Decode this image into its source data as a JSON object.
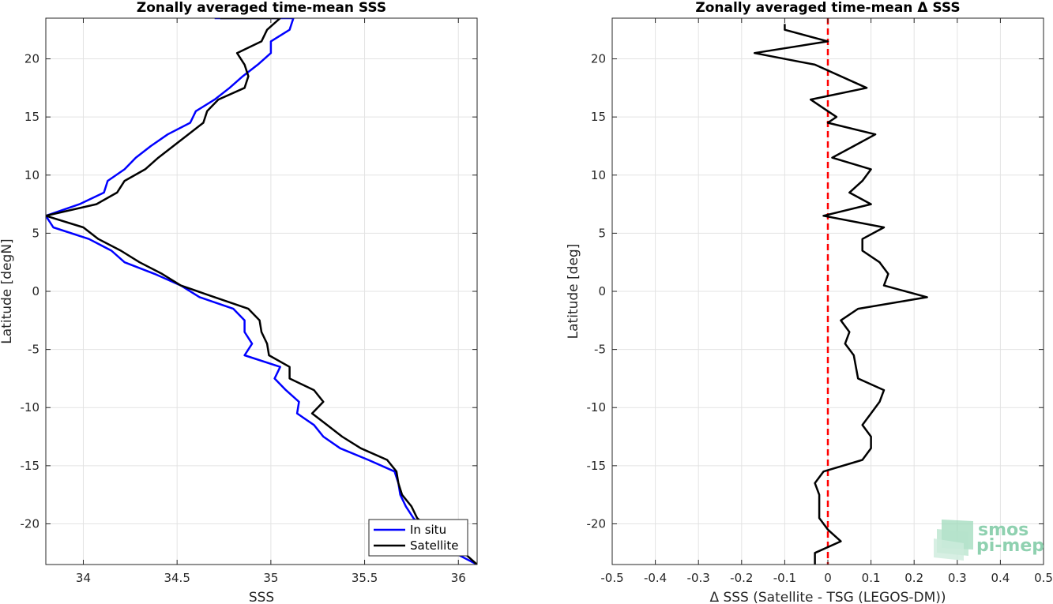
{
  "chart_data": [
    {
      "type": "line",
      "title": "Zonally averaged time-mean SSS",
      "xlabel": "SSS",
      "ylabel": "Latitude [degN]",
      "xlim": [
        33.8,
        36.1
      ],
      "ylim": [
        -23.5,
        23.5
      ],
      "xticks": [
        "34",
        "34.5",
        "35",
        "35.5",
        "36"
      ],
      "xtick_values": [
        34,
        34.5,
        35,
        35.5,
        36
      ],
      "yticks": [
        "-20",
        "-15",
        "-10",
        "-5",
        "0",
        "5",
        "10",
        "15",
        "20"
      ],
      "ytick_values": [
        -20,
        -15,
        -10,
        -5,
        0,
        5,
        10,
        15,
        20
      ],
      "grid": true,
      "legend_position": "bottom-right",
      "series": [
        {
          "name": "In situ",
          "color": "#0000ff",
          "points": [
            [
              34.7,
              23.5
            ],
            [
              35.12,
              23.5
            ],
            [
              35.1,
              22.5
            ],
            [
              35.0,
              21.5
            ],
            [
              35.0,
              20.5
            ],
            [
              34.93,
              19.5
            ],
            [
              34.85,
              18.5
            ],
            [
              34.78,
              17.5
            ],
            [
              34.7,
              16.5
            ],
            [
              34.6,
              15.5
            ],
            [
              34.57,
              14.5
            ],
            [
              34.45,
              13.5
            ],
            [
              34.36,
              12.5
            ],
            [
              34.28,
              11.5
            ],
            [
              34.22,
              10.5
            ],
            [
              34.13,
              9.5
            ],
            [
              34.11,
              8.5
            ],
            [
              33.98,
              7.5
            ],
            [
              33.8,
              6.5
            ],
            [
              33.84,
              5.5
            ],
            [
              34.03,
              4.5
            ],
            [
              34.15,
              3.5
            ],
            [
              34.22,
              2.5
            ],
            [
              34.38,
              1.5
            ],
            [
              34.52,
              0.5
            ],
            [
              34.62,
              -0.5
            ],
            [
              34.8,
              -1.5
            ],
            [
              34.86,
              -2.5
            ],
            [
              34.86,
              -3.5
            ],
            [
              34.9,
              -4.5
            ],
            [
              34.86,
              -5.5
            ],
            [
              35.05,
              -6.5
            ],
            [
              35.02,
              -7.5
            ],
            [
              35.08,
              -8.5
            ],
            [
              35.15,
              -9.5
            ],
            [
              35.14,
              -10.5
            ],
            [
              35.23,
              -11.5
            ],
            [
              35.28,
              -12.5
            ],
            [
              35.37,
              -13.5
            ],
            [
              35.52,
              -14.5
            ],
            [
              35.66,
              -15.5
            ],
            [
              35.68,
              -16.5
            ],
            [
              35.69,
              -17.5
            ],
            [
              35.72,
              -18.5
            ],
            [
              35.76,
              -19.5
            ],
            [
              35.82,
              -20.5
            ],
            [
              35.88,
              -21.5
            ],
            [
              35.98,
              -22.5
            ],
            [
              36.1,
              -23.5
            ]
          ]
        },
        {
          "name": "Satellite",
          "color": "#000000",
          "points": [
            [
              34.73,
              23.5
            ],
            [
              35.05,
              23.5
            ],
            [
              34.98,
              22.5
            ],
            [
              34.95,
              21.5
            ],
            [
              34.82,
              20.5
            ],
            [
              34.86,
              19.5
            ],
            [
              34.88,
              18.5
            ],
            [
              34.86,
              17.5
            ],
            [
              34.72,
              16.5
            ],
            [
              34.66,
              15.5
            ],
            [
              34.64,
              14.5
            ],
            [
              34.56,
              13.5
            ],
            [
              34.48,
              12.5
            ],
            [
              34.4,
              11.5
            ],
            [
              34.33,
              10.5
            ],
            [
              34.22,
              9.5
            ],
            [
              34.18,
              8.5
            ],
            [
              34.07,
              7.5
            ],
            [
              33.8,
              6.5
            ],
            [
              34.0,
              5.5
            ],
            [
              34.08,
              4.5
            ],
            [
              34.2,
              3.5
            ],
            [
              34.3,
              2.5
            ],
            [
              34.42,
              1.5
            ],
            [
              34.52,
              0.5
            ],
            [
              34.7,
              -0.5
            ],
            [
              34.88,
              -1.5
            ],
            [
              34.94,
              -2.5
            ],
            [
              34.95,
              -3.5
            ],
            [
              34.98,
              -4.5
            ],
            [
              34.99,
              -5.5
            ],
            [
              35.1,
              -6.5
            ],
            [
              35.1,
              -7.5
            ],
            [
              35.23,
              -8.5
            ],
            [
              35.28,
              -9.5
            ],
            [
              35.22,
              -10.5
            ],
            [
              35.3,
              -11.5
            ],
            [
              35.38,
              -12.5
            ],
            [
              35.48,
              -13.5
            ],
            [
              35.62,
              -14.5
            ],
            [
              35.67,
              -15.5
            ],
            [
              35.68,
              -16.5
            ],
            [
              35.7,
              -17.5
            ],
            [
              35.75,
              -18.5
            ],
            [
              35.78,
              -19.5
            ],
            [
              35.85,
              -20.5
            ],
            [
              35.93,
              -21.5
            ],
            [
              36.03,
              -22.5
            ],
            [
              36.1,
              -23.5
            ]
          ]
        }
      ]
    },
    {
      "type": "line",
      "title": "Zonally averaged time-mean Δ SSS",
      "xlabel": "Δ SSS (Satellite - TSG (LEGOS-DM))",
      "ylabel": "Latitude [deg]",
      "xlim": [
        -0.5,
        0.5
      ],
      "ylim": [
        -23.5,
        23.5
      ],
      "xticks": [
        "-0.5",
        "-0.4",
        "-0.3",
        "-0.2",
        "-0.1",
        "0",
        "0.1",
        "0.2",
        "0.3",
        "0.4",
        "0.5"
      ],
      "xtick_values": [
        -0.5,
        -0.4,
        -0.3,
        -0.2,
        -0.1,
        0,
        0.1,
        0.2,
        0.3,
        0.4,
        0.5
      ],
      "yticks": [
        "-20",
        "-15",
        "-10",
        "-5",
        "0",
        "5",
        "10",
        "15",
        "20"
      ],
      "ytick_values": [
        -20,
        -15,
        -10,
        -5,
        0,
        5,
        10,
        15,
        20
      ],
      "grid": true,
      "reference_line": {
        "x": 0,
        "color": "#ff0000",
        "style": "dashed"
      },
      "series": [
        {
          "color": "#000000",
          "points": [
            [
              -0.1,
              23.0
            ],
            [
              -0.1,
              22.5
            ],
            [
              0.0,
              21.5
            ],
            [
              -0.17,
              20.5
            ],
            [
              -0.03,
              19.5
            ],
            [
              0.09,
              17.5
            ],
            [
              -0.04,
              16.5
            ],
            [
              0.0,
              15.5
            ],
            [
              0.02,
              15.0
            ],
            [
              0.0,
              14.5
            ],
            [
              0.11,
              13.5
            ],
            [
              0.06,
              12.5
            ],
            [
              0.01,
              11.5
            ],
            [
              0.1,
              10.5
            ],
            [
              0.08,
              9.5
            ],
            [
              0.05,
              8.5
            ],
            [
              0.1,
              7.5
            ],
            [
              -0.01,
              6.5
            ],
            [
              0.13,
              5.5
            ],
            [
              0.08,
              4.5
            ],
            [
              0.08,
              3.5
            ],
            [
              0.12,
              2.5
            ],
            [
              0.14,
              1.5
            ],
            [
              0.13,
              0.5
            ],
            [
              0.23,
              -0.5
            ],
            [
              0.07,
              -1.5
            ],
            [
              0.03,
              -2.5
            ],
            [
              0.05,
              -3.5
            ],
            [
              0.04,
              -4.5
            ],
            [
              0.06,
              -5.5
            ],
            [
              0.07,
              -7.5
            ],
            [
              0.13,
              -8.5
            ],
            [
              0.12,
              -9.5
            ],
            [
              0.1,
              -10.5
            ],
            [
              0.08,
              -11.5
            ],
            [
              0.1,
              -12.5
            ],
            [
              0.1,
              -13.5
            ],
            [
              0.08,
              -14.5
            ],
            [
              -0.01,
              -15.5
            ],
            [
              -0.03,
              -16.5
            ],
            [
              -0.02,
              -17.5
            ],
            [
              -0.02,
              -18.5
            ],
            [
              -0.02,
              -19.5
            ],
            [
              0.0,
              -20.5
            ],
            [
              0.03,
              -21.5
            ],
            [
              -0.03,
              -22.5
            ],
            [
              -0.03,
              -23.5
            ]
          ]
        }
      ]
    }
  ],
  "logo": {
    "line1": "smos",
    "line2": "pi-mep",
    "color": "#8fd1b0"
  }
}
